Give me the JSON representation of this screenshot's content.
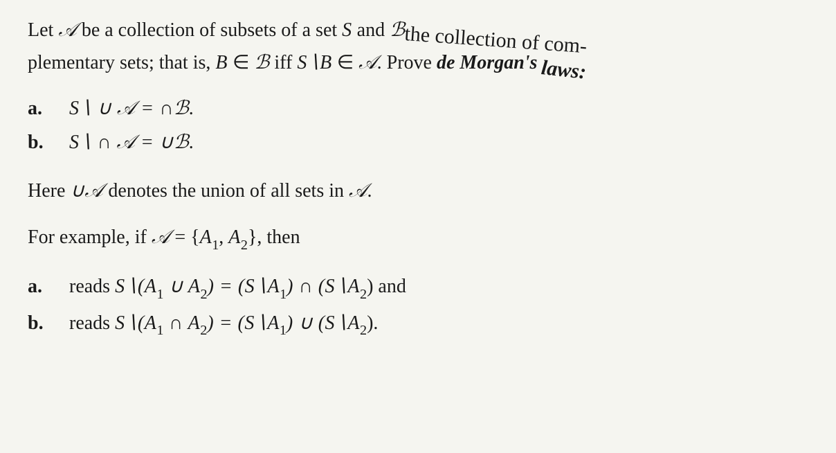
{
  "colors": {
    "background": "#f5f5f0",
    "text": "#1a1a1a"
  },
  "typography": {
    "family": "Times New Roman, serif",
    "base_size_pt": 21,
    "script_family": "Brush Script / cursive for calligraphic A, B"
  },
  "intro": {
    "line1_pre": "Let ",
    "A_script": "𝒜",
    "line1_mid": " be a collection of subsets of a set ",
    "S": "S",
    "line1_and": " and ",
    "B_script": "ℬ",
    "line1_tail": " the collection of com-",
    "line2_pre": "plementary sets; that is, ",
    "B": "B",
    "elem": " ∈ ",
    "iff": " iff ",
    "SminusB": "S∖B",
    "line2_mid2": ". Prove ",
    "demorgan": "de Morgan's ",
    "laws_tail": "laws:"
  },
  "partA": {
    "label": "a.",
    "formula": "S∖ ∪ 𝒜 = ∩ℬ."
  },
  "partB": {
    "label": "b.",
    "formula": "S∖ ∩ 𝒜 = ∪ℬ."
  },
  "note": {
    "pre": "Here ",
    "UA": "∪𝒜",
    "post": " denotes the union of all sets in ",
    "A_script": "𝒜",
    "end": "."
  },
  "example": {
    "pre": "For example, if ",
    "A_script": "𝒜",
    "eq": " = {",
    "A1": "A",
    "sub1": "1",
    "comma": ", ",
    "A2": "A",
    "sub2": "2",
    "close": "}, then"
  },
  "exA": {
    "label": "a.",
    "pre": "reads ",
    "lhs_S": "S",
    "lhs_open": "∖(",
    "A1": "A",
    "s1": "1",
    "cup": " ∪ ",
    "A2": "A",
    "s2": "2",
    "lhs_close": ") = (",
    "SA1": "S∖A",
    "r_close1": ") ∩ (",
    "SA2": "S∖A",
    "end": ")  and"
  },
  "exB": {
    "label": "b.",
    "pre": "reads ",
    "lhs_S": "S",
    "lhs_open": "∖(",
    "A1": "A",
    "s1": "1",
    "cap": " ∩ ",
    "A2": "A",
    "s2": "2",
    "lhs_close": ") = (",
    "SA1": "S∖A",
    "r_close1": ") ∪ (",
    "SA2": "S∖A",
    "end": ")."
  }
}
